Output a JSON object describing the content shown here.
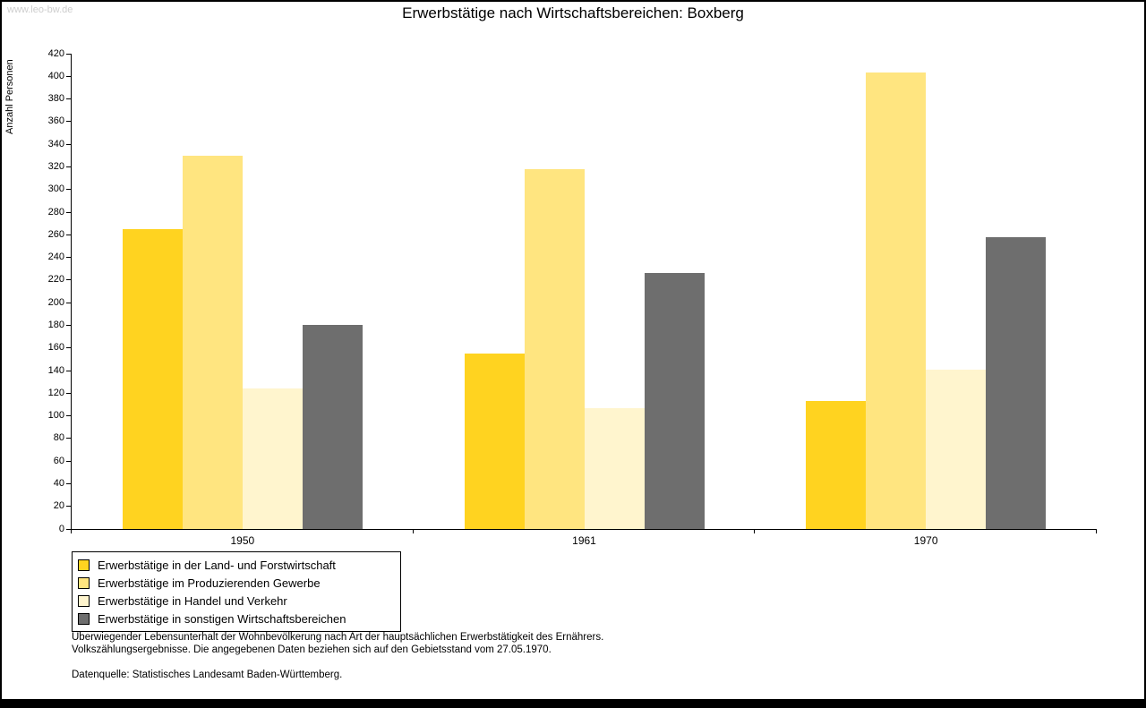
{
  "page": {
    "watermark": "www.leo-bw.de"
  },
  "chart_data": {
    "type": "bar",
    "title": "Erwerbstätige nach Wirtschaftsbereichen: Boxberg",
    "xlabel": "",
    "ylabel": "Anzahl Personen",
    "categories": [
      "1950",
      "1961",
      "1970"
    ],
    "series": [
      {
        "name": "Erwerbstätige in der Land- und Forstwirtschaft",
        "color": "#FFD320",
        "values": [
          265,
          155,
          113
        ]
      },
      {
        "name": "Erwerbstätige im Produzierenden Gewerbe",
        "color": "#FFE580",
        "values": [
          330,
          318,
          403
        ]
      },
      {
        "name": "Erwerbstätige in Handel und Verkehr",
        "color": "#FFF5CE",
        "values": [
          124,
          107,
          141
        ]
      },
      {
        "name": "Erwerbstätige in sonstigen Wirtschaftsbereichen",
        "color": "#6E6E6E",
        "values": [
          180,
          226,
          258
        ]
      }
    ],
    "ylim": [
      0,
      420
    ],
    "ytick_step": 20,
    "grid": false,
    "legend_position": "bottom-left"
  },
  "footnotes": {
    "line1": "Überwiegender Lebensunterhalt der Wohnbevölkerung nach Art der hauptsächlichen Erwerbstätigkeit des Ernährers.",
    "line2": "Volkszählungsergebnisse. Die angegebenen Daten beziehen sich auf den Gebietsstand vom 27.05.1970.",
    "source": "Datenquelle: Statistisches Landesamt Baden-Württemberg."
  }
}
